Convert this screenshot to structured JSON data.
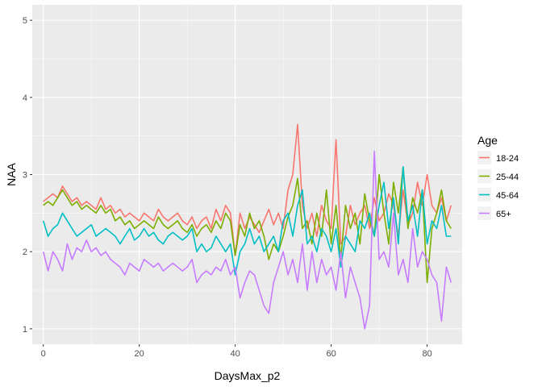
{
  "chart_data": {
    "type": "line",
    "xlabel": "DaysMax_p2",
    "ylabel": "NAA",
    "xlim": [
      -2.3,
      87.3
    ],
    "ylim": [
      0.8,
      5.2
    ],
    "x_ticks": [
      0,
      20,
      40,
      60,
      80
    ],
    "x_tick_labels": [
      "0",
      "20",
      "40",
      "60",
      "80"
    ],
    "y_ticks": [
      1,
      2,
      3,
      4,
      5
    ],
    "y_tick_labels": [
      "1",
      "2",
      "3",
      "4",
      "5"
    ],
    "grid": true,
    "panel_background": "#EBEBEB",
    "legend": {
      "title": "Age",
      "position": "right"
    },
    "x": [
      0,
      1,
      2,
      3,
      4,
      5,
      6,
      7,
      8,
      9,
      10,
      11,
      12,
      13,
      14,
      15,
      16,
      17,
      18,
      19,
      20,
      21,
      22,
      23,
      24,
      25,
      26,
      27,
      28,
      29,
      30,
      31,
      32,
      33,
      34,
      35,
      36,
      37,
      38,
      39,
      40,
      41,
      42,
      43,
      44,
      45,
      46,
      47,
      48,
      49,
      50,
      51,
      52,
      53,
      54,
      55,
      56,
      57,
      58,
      59,
      60,
      61,
      62,
      63,
      64,
      65,
      66,
      67,
      68,
      69,
      70,
      71,
      72,
      73,
      74,
      75,
      76,
      77,
      78,
      79,
      80,
      81,
      82,
      83,
      84,
      85
    ],
    "series": [
      {
        "name": "18-24",
        "color": "#F8766D",
        "values": [
          2.65,
          2.7,
          2.75,
          2.7,
          2.85,
          2.75,
          2.65,
          2.7,
          2.6,
          2.65,
          2.6,
          2.55,
          2.7,
          2.55,
          2.6,
          2.5,
          2.55,
          2.45,
          2.5,
          2.45,
          2.4,
          2.5,
          2.45,
          2.4,
          2.55,
          2.45,
          2.4,
          2.45,
          2.5,
          2.4,
          2.35,
          2.45,
          2.3,
          2.4,
          2.45,
          2.3,
          2.55,
          2.4,
          2.6,
          2.5,
          1.95,
          2.5,
          2.3,
          2.45,
          2.35,
          2.25,
          2.4,
          2.55,
          2.35,
          2.5,
          2.3,
          2.8,
          3.0,
          3.65,
          2.6,
          2.3,
          2.5,
          2.2,
          2.6,
          2.4,
          2.3,
          3.45,
          2.1,
          2.2,
          2.6,
          2.35,
          2.5,
          2.6,
          2.3,
          2.7,
          2.4,
          2.5,
          2.75,
          2.6,
          2.2,
          2.8,
          2.35,
          2.5,
          2.9,
          2.6,
          3.0,
          2.6,
          2.5,
          2.7,
          2.4,
          2.6
        ]
      },
      {
        "name": "25-44",
        "color": "#7CAE00",
        "values": [
          2.6,
          2.65,
          2.6,
          2.7,
          2.8,
          2.7,
          2.6,
          2.65,
          2.55,
          2.6,
          2.55,
          2.5,
          2.6,
          2.5,
          2.55,
          2.4,
          2.45,
          2.35,
          2.4,
          2.3,
          2.35,
          2.4,
          2.35,
          2.3,
          2.45,
          2.35,
          2.3,
          2.35,
          2.4,
          2.3,
          2.25,
          2.35,
          2.2,
          2.3,
          2.35,
          2.25,
          2.4,
          2.3,
          2.5,
          2.4,
          1.95,
          2.35,
          2.2,
          2.5,
          2.3,
          2.4,
          2.2,
          1.9,
          2.1,
          2.0,
          2.2,
          2.45,
          2.6,
          2.95,
          2.3,
          2.4,
          2.1,
          2.5,
          2.2,
          2.8,
          2.1,
          2.6,
          1.9,
          2.6,
          2.3,
          2.5,
          2.1,
          2.75,
          2.4,
          2.2,
          3.0,
          2.5,
          2.1,
          2.9,
          2.5,
          3.1,
          2.3,
          2.7,
          2.5,
          2.8,
          1.6,
          2.3,
          2.5,
          2.8,
          2.4,
          2.3
        ]
      },
      {
        "name": "45-64",
        "color": "#00BFC4",
        "values": [
          2.4,
          2.2,
          2.3,
          2.35,
          2.5,
          2.4,
          2.3,
          2.2,
          2.25,
          2.3,
          2.35,
          2.2,
          2.25,
          2.3,
          2.25,
          2.2,
          2.1,
          2.2,
          2.3,
          2.15,
          2.2,
          2.3,
          2.2,
          2.25,
          2.15,
          2.1,
          2.2,
          2.25,
          2.2,
          2.15,
          2.2,
          2.3,
          2.0,
          2.1,
          2.0,
          2.05,
          2.2,
          2.1,
          2.0,
          2.1,
          1.7,
          2.0,
          2.1,
          2.3,
          2.1,
          2.2,
          2.0,
          2.1,
          2.2,
          2.0,
          2.4,
          2.5,
          2.2,
          2.6,
          2.8,
          2.1,
          2.2,
          2.0,
          2.3,
          2.2,
          2.0,
          2.3,
          1.8,
          2.2,
          2.1,
          2.0,
          2.4,
          2.3,
          2.5,
          2.2,
          2.6,
          2.9,
          2.3,
          2.7,
          2.1,
          3.1,
          2.4,
          2.6,
          2.2,
          2.8,
          2.1,
          2.4,
          2.3,
          2.6,
          2.2,
          2.2
        ]
      },
      {
        "name": "65+",
        "color": "#C77CFF",
        "values": [
          2.0,
          1.75,
          2.0,
          1.9,
          1.75,
          2.1,
          1.9,
          2.05,
          2.0,
          2.15,
          2.0,
          2.05,
          1.95,
          2.0,
          1.9,
          1.85,
          1.8,
          1.7,
          1.85,
          1.8,
          1.75,
          1.9,
          1.85,
          1.8,
          1.85,
          1.75,
          1.8,
          1.85,
          1.8,
          1.75,
          1.8,
          1.9,
          1.6,
          1.7,
          1.75,
          1.7,
          1.8,
          1.75,
          1.9,
          1.7,
          1.8,
          1.4,
          1.6,
          1.75,
          1.7,
          1.5,
          1.3,
          1.2,
          1.6,
          1.8,
          2.0,
          1.7,
          1.9,
          1.6,
          2.1,
          1.5,
          2.0,
          1.6,
          1.9,
          1.7,
          1.8,
          1.5,
          2.0,
          1.4,
          1.8,
          1.6,
          1.4,
          1.0,
          1.3,
          3.3,
          1.9,
          2.0,
          1.8,
          2.5,
          1.7,
          1.9,
          1.6,
          2.3,
          1.8,
          2.0,
          1.9,
          1.7,
          1.6,
          1.1,
          1.8,
          1.6
        ]
      }
    ]
  }
}
